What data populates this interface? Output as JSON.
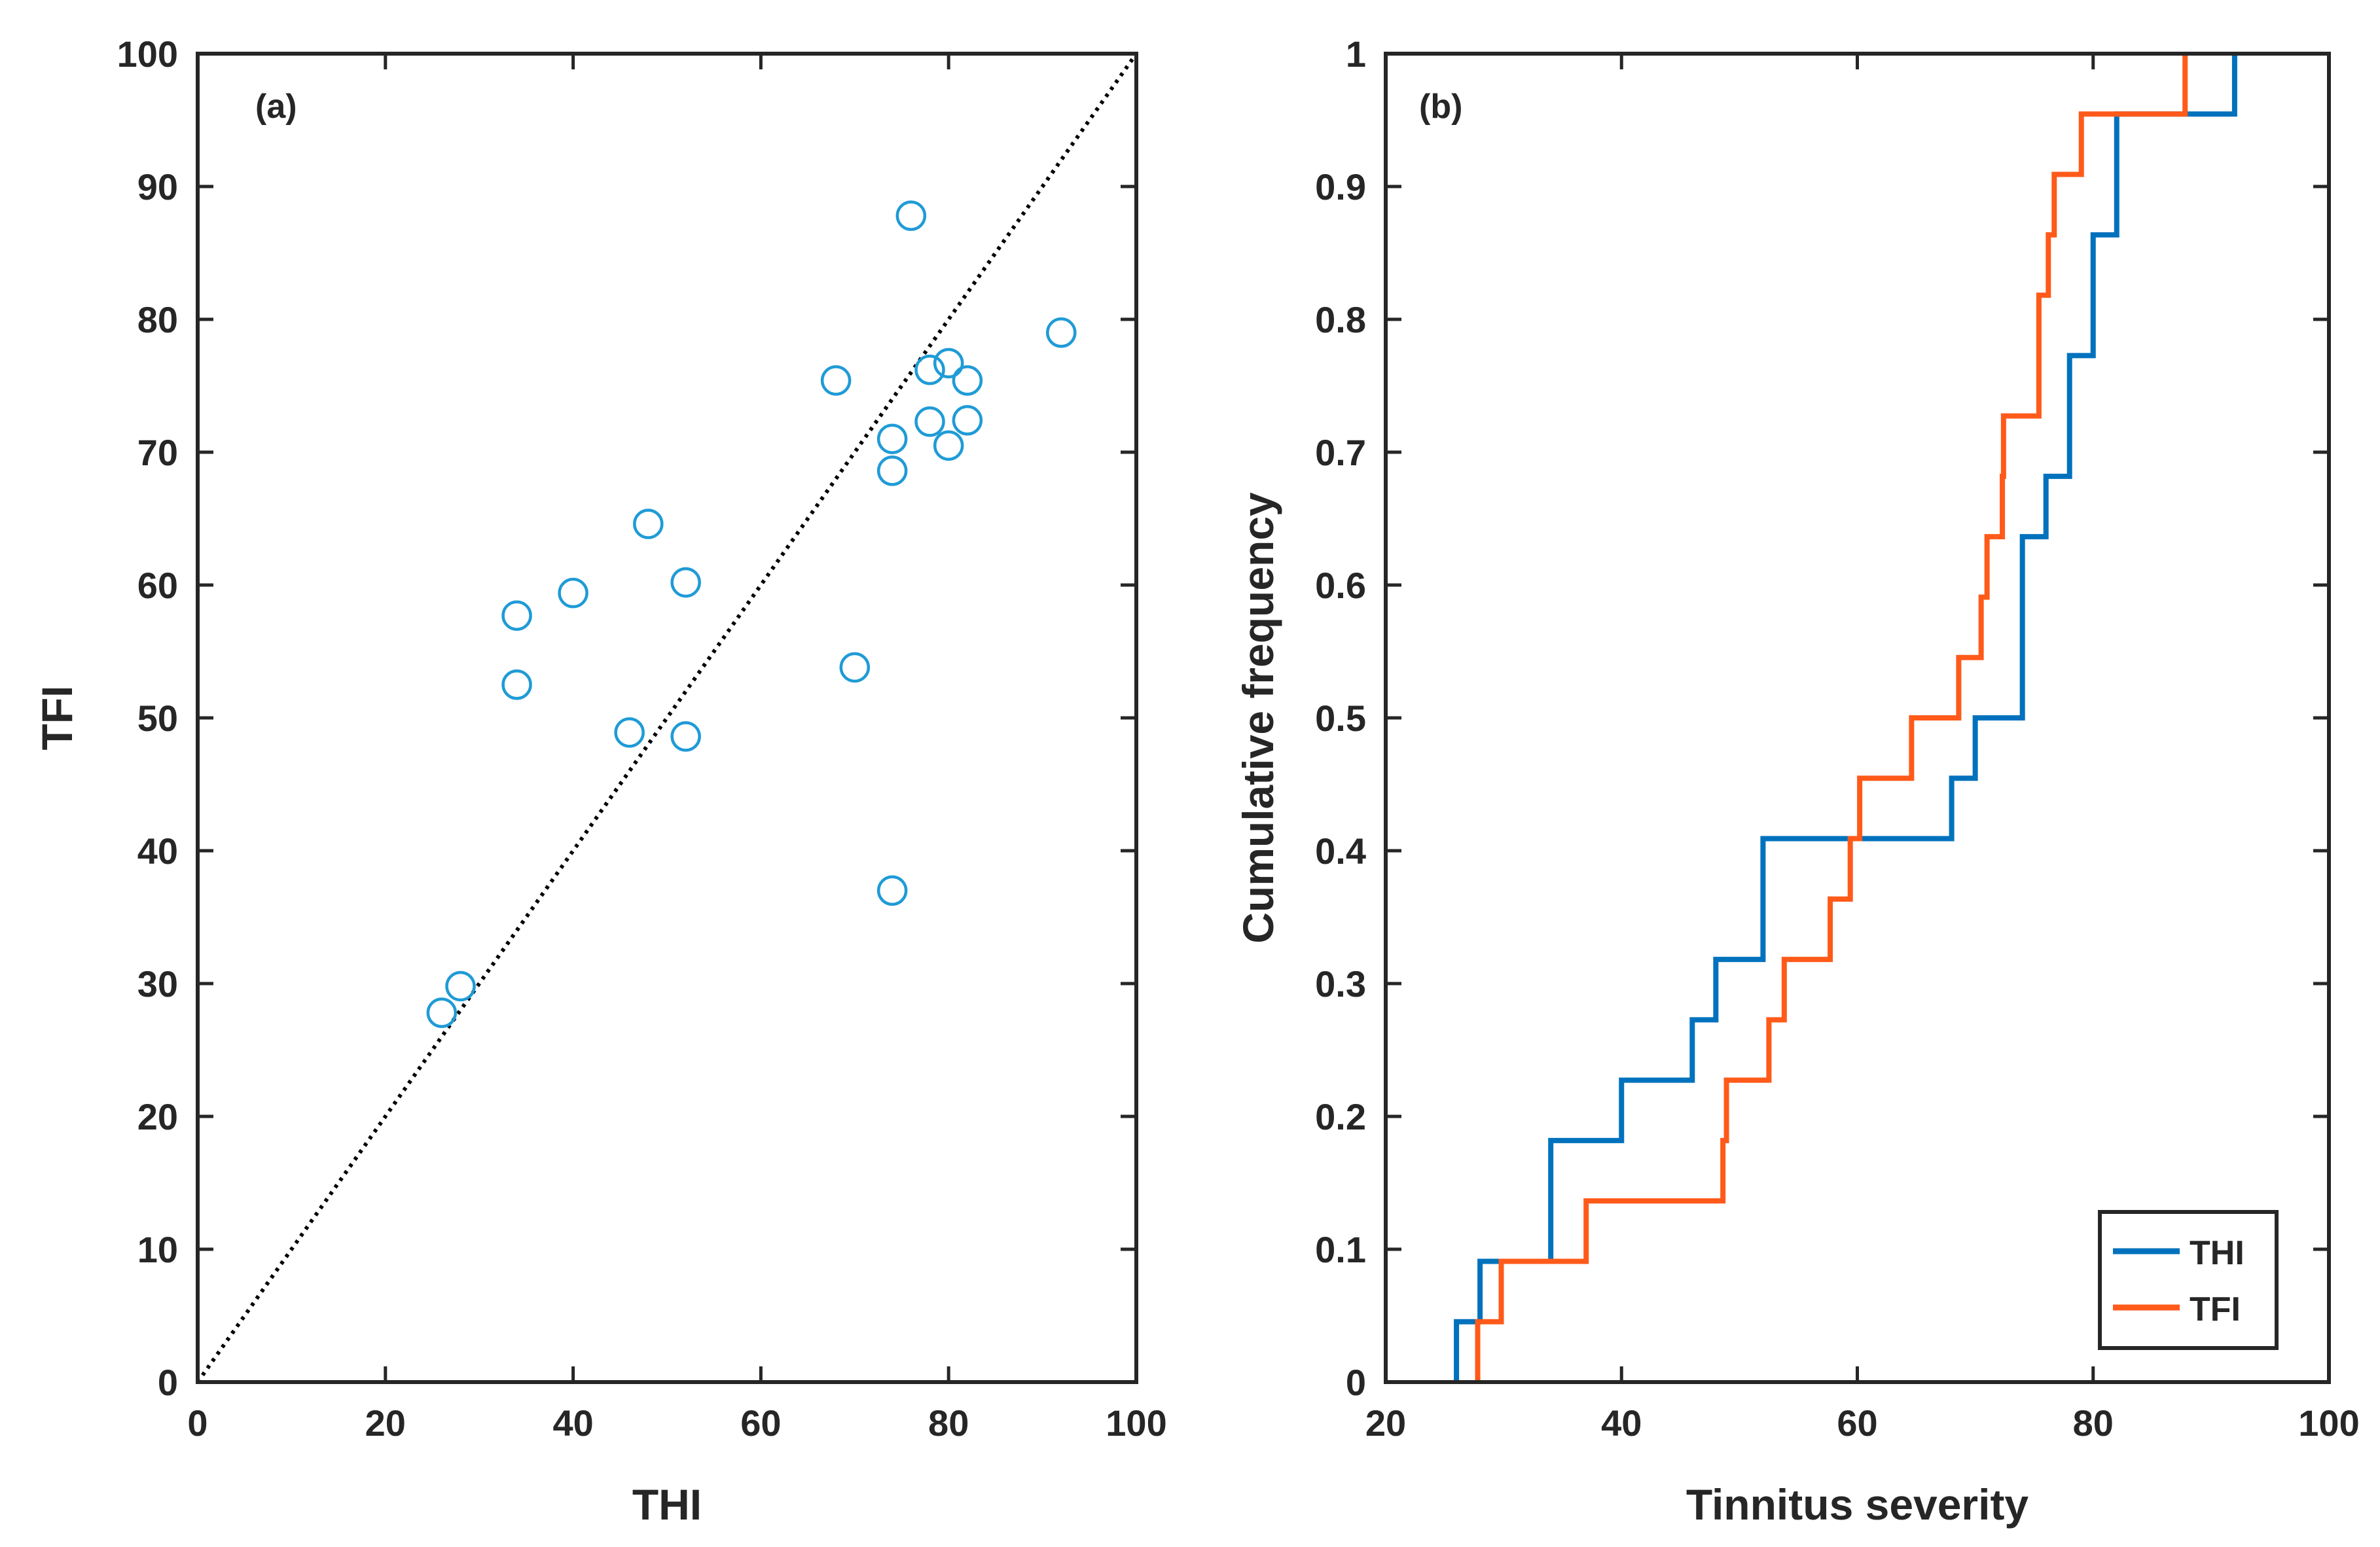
{
  "chart_data": [
    {
      "type": "scatter",
      "panel_label": "(a)",
      "xlabel": "THI",
      "ylabel": "TFI",
      "xlim": [
        0,
        100
      ],
      "ylim": [
        0,
        100
      ],
      "xticks": [
        "0",
        "20",
        "40",
        "60",
        "80",
        "100"
      ],
      "yticks": [
        "0",
        "10",
        "20",
        "30",
        "40",
        "50",
        "60",
        "70",
        "80",
        "90",
        "100"
      ],
      "marker_color": "#1f9bd6",
      "reference_line": {
        "style": "dotted",
        "color": "#000000",
        "from": [
          0,
          0
        ],
        "to": [
          100,
          100
        ]
      },
      "points": [
        {
          "x": 26,
          "y": 27.8
        },
        {
          "x": 28,
          "y": 29.8
        },
        {
          "x": 34,
          "y": 52.5
        },
        {
          "x": 34,
          "y": 57.7
        },
        {
          "x": 40,
          "y": 59.4
        },
        {
          "x": 46,
          "y": 48.9
        },
        {
          "x": 48,
          "y": 64.6
        },
        {
          "x": 52,
          "y": 48.6
        },
        {
          "x": 52,
          "y": 60.2
        },
        {
          "x": 68,
          "y": 75.4
        },
        {
          "x": 70,
          "y": 53.8
        },
        {
          "x": 74,
          "y": 37.0
        },
        {
          "x": 74,
          "y": 68.6
        },
        {
          "x": 74,
          "y": 71.0
        },
        {
          "x": 76,
          "y": 87.8
        },
        {
          "x": 78,
          "y": 72.3
        },
        {
          "x": 78,
          "y": 76.2
        },
        {
          "x": 80,
          "y": 70.5
        },
        {
          "x": 80,
          "y": 76.7
        },
        {
          "x": 82,
          "y": 72.4
        },
        {
          "x": 82,
          "y": 75.4
        },
        {
          "x": 92,
          "y": 79.0
        }
      ]
    },
    {
      "type": "line",
      "subtype": "empirical-cdf",
      "panel_label": "(b)",
      "xlabel": "Tinnitus severity",
      "ylabel": "Cumulative frequency",
      "xlim": [
        20,
        100
      ],
      "ylim": [
        0,
        1
      ],
      "xticks": [
        "20",
        "40",
        "60",
        "80",
        "100"
      ],
      "yticks": [
        "0",
        "0.1",
        "0.2",
        "0.3",
        "0.4",
        "0.5",
        "0.6",
        "0.7",
        "0.8",
        "0.9",
        "1"
      ],
      "legend_position": "bottom-right",
      "series": [
        {
          "name": "THI",
          "color": "#0072bd",
          "values": [
            26,
            28,
            34,
            34,
            40,
            46,
            48,
            52,
            52,
            68,
            70,
            74,
            74,
            74,
            76,
            78,
            78,
            80,
            80,
            82,
            82,
            92
          ]
        },
        {
          "name": "TFI",
          "color": "#ff5a1a",
          "values": [
            27.8,
            29.8,
            37.0,
            48.6,
            48.9,
            52.5,
            53.8,
            57.7,
            59.4,
            60.2,
            64.6,
            68.6,
            70.5,
            71.0,
            72.3,
            72.4,
            75.4,
            75.4,
            76.2,
            76.7,
            79.0,
            87.8
          ]
        }
      ]
    }
  ]
}
